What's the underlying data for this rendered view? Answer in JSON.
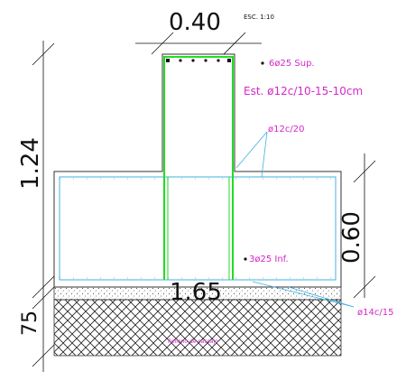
{
  "scale_note": "ESC. 1:10",
  "dimensions": {
    "column_width": "0.40",
    "total_height": "1.24",
    "footing_height": "0.60",
    "footing_width": "1.65",
    "base_depth": "75"
  },
  "rebar_labels": {
    "top_bars": "6ø25 Sup.",
    "stirrups": "Est. ø12c/10-15-10cm",
    "ties": "ø12c/20",
    "bottom_bars": "3ø25 Inf.",
    "base_bars": "ø14c/15"
  },
  "fill_label": "Relleno de cascajo",
  "colors": {
    "concrete_outline": "#333333",
    "column_rebar": "#22dd22",
    "footing_rebar": "#40b0e0",
    "annotation": "#d428c8"
  }
}
